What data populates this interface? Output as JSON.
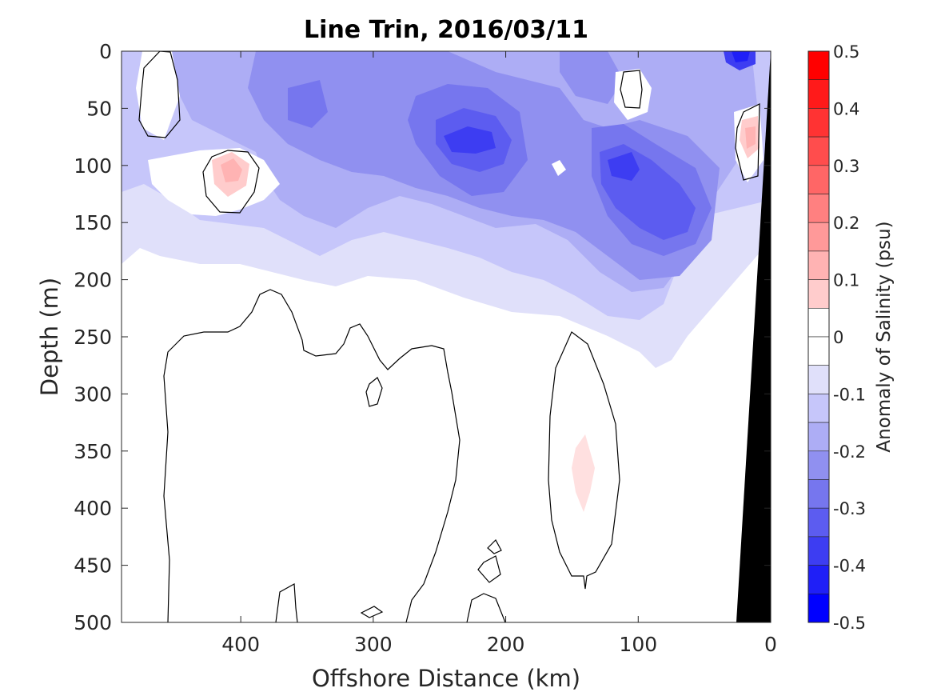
{
  "chart_data": {
    "type": "heatmap",
    "title": "Line Trin, 2016/03/11",
    "xlabel": "Offshore Distance (km)",
    "ylabel": "Depth (m)",
    "xlim": [
      490,
      0
    ],
    "ylim": [
      0,
      500
    ],
    "x_reversed": true,
    "y_reversed": true,
    "xticks": [
      400,
      300,
      200,
      100,
      0
    ],
    "yticks": [
      0,
      50,
      100,
      150,
      200,
      250,
      300,
      350,
      400,
      450,
      500
    ],
    "colorbar": {
      "label": "Anomaly of Salinity (psu)",
      "range": [
        -0.5,
        0.5
      ],
      "ticks": [
        "0.5",
        "0.4",
        "0.3",
        "0.2",
        "0.1",
        "0",
        "-0.1",
        "-0.2",
        "-0.3",
        "-0.4",
        "-0.5"
      ],
      "tick_values": [
        0.5,
        0.4,
        0.3,
        0.2,
        0.1,
        0,
        -0.1,
        -0.2,
        -0.3,
        -0.4,
        -0.5
      ],
      "levels": [
        {
          "min": 0.45,
          "max": 0.5,
          "color": "#ff0000"
        },
        {
          "min": 0.4,
          "max": 0.45,
          "color": "#ff1a1a"
        },
        {
          "min": 0.35,
          "max": 0.4,
          "color": "#ff3333"
        },
        {
          "min": 0.3,
          "max": 0.35,
          "color": "#ff4d4d"
        },
        {
          "min": 0.25,
          "max": 0.3,
          "color": "#ff6666"
        },
        {
          "min": 0.2,
          "max": 0.25,
          "color": "#ff8080"
        },
        {
          "min": 0.15,
          "max": 0.2,
          "color": "#ff9999"
        },
        {
          "min": 0.1,
          "max": 0.15,
          "color": "#ffb3b3"
        },
        {
          "min": 0.05,
          "max": 0.1,
          "color": "#ffcccc"
        },
        {
          "min": 0.0,
          "max": 0.05,
          "color": "#ffffff"
        },
        {
          "min": -0.05,
          "max": 0.0,
          "color": "#ffffff"
        },
        {
          "min": -0.1,
          "max": -0.05,
          "color": "#e0e0fa"
        },
        {
          "min": -0.15,
          "max": -0.1,
          "color": "#c6c6fa"
        },
        {
          "min": -0.2,
          "max": -0.15,
          "color": "#adadf5"
        },
        {
          "min": -0.25,
          "max": -0.2,
          "color": "#9090f0"
        },
        {
          "min": -0.3,
          "max": -0.25,
          "color": "#7676ee"
        },
        {
          "min": -0.35,
          "max": -0.3,
          "color": "#5c5cf0"
        },
        {
          "min": -0.4,
          "max": -0.35,
          "color": "#3d3df2"
        },
        {
          "min": -0.45,
          "max": -0.4,
          "color": "#1f1ff7"
        },
        {
          "min": -0.5,
          "max": -0.45,
          "color": "#0000ff"
        }
      ]
    },
    "anomaly_regions": [
      {
        "name": "near-surface fresh band",
        "x": [
          490,
          0
        ],
        "depth": [
          0,
          200
        ],
        "value": -0.1
      },
      {
        "name": "fresh core offshore",
        "x": [
          350,
          320
        ],
        "depth": [
          30,
          110
        ],
        "value": -0.2
      },
      {
        "name": "fresh core mid",
        "x": [
          250,
          190
        ],
        "depth": [
          50,
          130
        ],
        "value": -0.3
      },
      {
        "name": "fresh core nearshore",
        "x": [
          130,
          60
        ],
        "depth": [
          70,
          180
        ],
        "value": -0.3
      },
      {
        "name": "surface fresh patch",
        "x": [
          35,
          20
        ],
        "depth": [
          0,
          20
        ],
        "value": -0.45
      },
      {
        "name": "salty eddy",
        "x": [
          420,
          390
        ],
        "depth": [
          90,
          130
        ],
        "value": 0.1
      },
      {
        "name": "salty lens",
        "x": [
          150,
          130
        ],
        "depth": [
          330,
          400
        ],
        "value": 0.05
      },
      {
        "name": "nearshore salty",
        "x": [
          25,
          10
        ],
        "depth": [
          50,
          100
        ],
        "value": 0.1
      }
    ],
    "zero_contours": true,
    "bathymetry": {
      "color": "#000000",
      "x_at_surface": 0,
      "x_at_500m": 30
    }
  }
}
